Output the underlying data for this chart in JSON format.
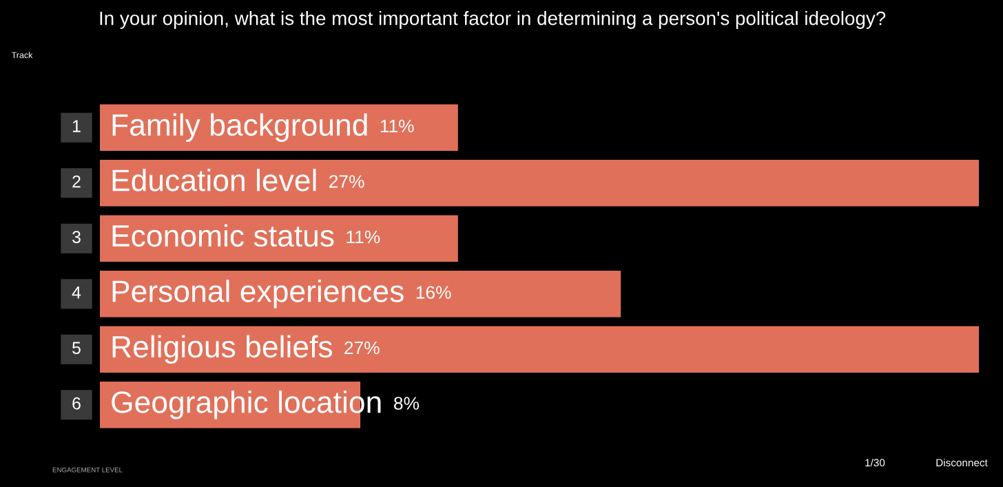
{
  "chart_data": {
    "type": "bar",
    "orientation": "horizontal",
    "title": "In your opinion, what is the most important factor in determining a person's political ideology?",
    "categories": [
      "Family background",
      "Education level",
      "Economic status",
      "Personal experiences",
      "Religious beliefs",
      "Geographic location"
    ],
    "values": [
      11,
      27,
      11,
      16,
      27,
      8
    ],
    "value_labels": [
      "11%",
      "27%",
      "11%",
      "16%",
      "27%",
      "8%"
    ],
    "color": "#e0705a",
    "annotations": [
      "1",
      "2",
      "3",
      "4",
      "5",
      "6",
      "Track",
      "ENGAGEMENT LEVEL",
      "1/30",
      "Disconnect"
    ]
  }
}
